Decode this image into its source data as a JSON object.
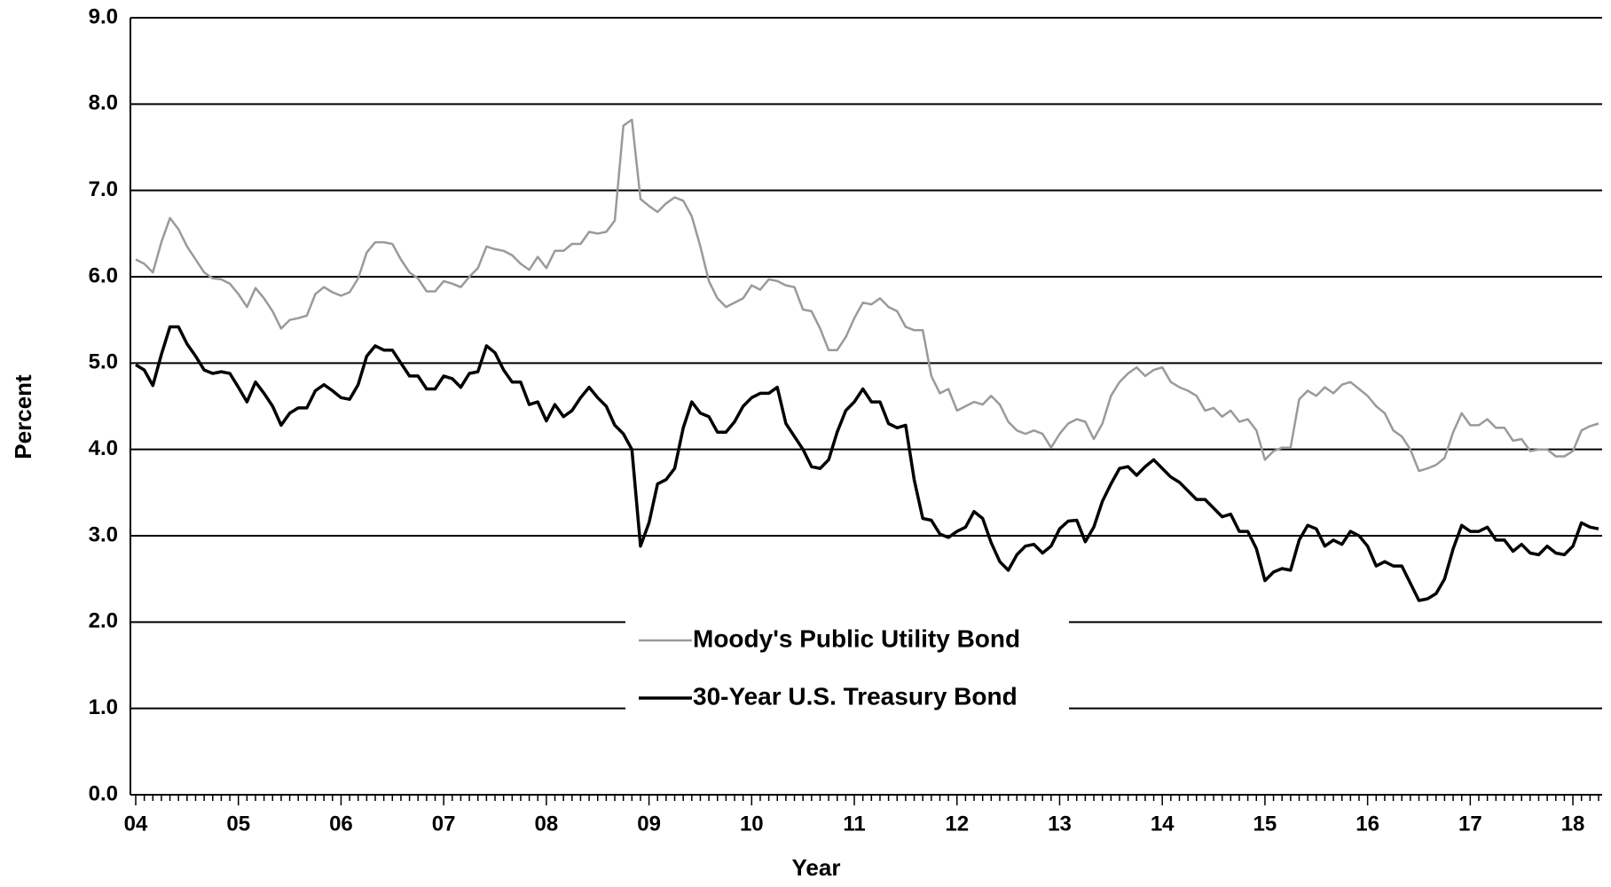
{
  "chart_data": {
    "type": "line",
    "y_label": "Percent",
    "x_label": "Year",
    "categories": [
      "04",
      null,
      null,
      null,
      null,
      null,
      null,
      null,
      null,
      null,
      null,
      null,
      "05",
      null,
      null,
      null,
      null,
      null,
      null,
      null,
      null,
      null,
      null,
      null,
      "06",
      null,
      null,
      null,
      null,
      null,
      null,
      null,
      null,
      null,
      null,
      null,
      "07",
      null,
      null,
      null,
      null,
      null,
      null,
      null,
      null,
      null,
      null,
      null,
      "08",
      null,
      null,
      null,
      null,
      null,
      null,
      null,
      null,
      null,
      null,
      null,
      "09",
      null,
      null,
      null,
      null,
      null,
      null,
      null,
      null,
      null,
      null,
      null,
      "10",
      null,
      null,
      null,
      null,
      null,
      null,
      null,
      null,
      null,
      null,
      null,
      "11",
      null,
      null,
      null,
      null,
      null,
      null,
      null,
      null,
      null,
      null,
      null,
      "12",
      null,
      null,
      null,
      null,
      null,
      null,
      null,
      null,
      null,
      null,
      null,
      "13",
      null,
      null,
      null,
      null,
      null,
      null,
      null,
      null,
      null,
      null,
      null,
      "14",
      null,
      null,
      null,
      null,
      null,
      null,
      null,
      null,
      null,
      null,
      null,
      "15",
      null,
      null,
      null,
      null,
      null,
      null,
      null,
      null,
      null,
      null,
      null,
      "16",
      null,
      null,
      null,
      null,
      null,
      null,
      null,
      null,
      null,
      null,
      null,
      "17",
      null,
      null,
      null,
      null,
      null,
      null,
      null,
      null,
      null,
      null,
      null,
      "18",
      null,
      null,
      null
    ],
    "series": [
      {
        "name": "Moody's Public Utility Bond",
        "color": "#9a9a9a",
        "values": [
          6.2,
          6.15,
          6.05,
          6.4,
          6.68,
          6.55,
          6.35,
          6.2,
          6.05,
          5.98,
          5.97,
          5.92,
          5.8,
          5.65,
          5.87,
          5.75,
          5.6,
          5.4,
          5.5,
          5.52,
          5.55,
          5.8,
          5.88,
          5.82,
          5.78,
          5.82,
          5.98,
          6.28,
          6.4,
          6.4,
          6.38,
          6.2,
          6.05,
          5.98,
          5.83,
          5.83,
          5.95,
          5.92,
          5.88,
          6.0,
          6.1,
          6.35,
          6.32,
          6.3,
          6.25,
          6.15,
          6.08,
          6.23,
          6.1,
          6.3,
          6.3,
          6.38,
          6.38,
          6.52,
          6.5,
          6.52,
          6.65,
          7.75,
          7.82,
          6.9,
          6.82,
          6.75,
          6.85,
          6.92,
          6.88,
          6.7,
          6.35,
          5.95,
          5.75,
          5.65,
          5.7,
          5.75,
          5.9,
          5.85,
          5.97,
          5.95,
          5.9,
          5.88,
          5.62,
          5.6,
          5.4,
          5.15,
          5.15,
          5.3,
          5.52,
          5.7,
          5.68,
          5.75,
          5.65,
          5.6,
          5.42,
          5.38,
          5.38,
          4.85,
          4.65,
          4.7,
          4.45,
          4.5,
          4.55,
          4.52,
          4.62,
          4.52,
          4.32,
          4.22,
          4.18,
          4.22,
          4.18,
          4.02,
          4.18,
          4.3,
          4.35,
          4.32,
          4.12,
          4.3,
          4.62,
          4.78,
          4.88,
          4.95,
          4.85,
          4.92,
          4.95,
          4.78,
          4.72,
          4.68,
          4.62,
          4.45,
          4.48,
          4.38,
          4.45,
          4.32,
          4.35,
          4.22,
          3.88,
          3.98,
          4.02,
          4.02,
          4.58,
          4.68,
          4.62,
          4.72,
          4.65,
          4.75,
          4.78,
          4.7,
          4.62,
          4.5,
          4.42,
          4.22,
          4.15,
          4.0,
          3.75,
          3.78,
          3.82,
          3.9,
          4.2,
          4.42,
          4.28,
          4.28,
          4.35,
          4.25,
          4.25,
          4.1,
          4.12,
          3.98,
          4.0,
          4.0,
          3.92,
          3.92,
          3.98,
          4.22,
          4.27,
          4.3
        ]
      },
      {
        "name": "30-Year U.S. Treasury Bond",
        "color": "#000000",
        "values": [
          4.98,
          4.92,
          4.74,
          5.1,
          5.42,
          5.42,
          5.22,
          5.08,
          4.92,
          4.88,
          4.9,
          4.88,
          4.72,
          4.55,
          4.78,
          4.65,
          4.5,
          4.28,
          4.42,
          4.48,
          4.48,
          4.68,
          4.75,
          4.68,
          4.6,
          4.58,
          4.75,
          5.08,
          5.2,
          5.15,
          5.15,
          5.0,
          4.85,
          4.85,
          4.7,
          4.7,
          4.85,
          4.82,
          4.72,
          4.88,
          4.9,
          5.2,
          5.12,
          4.92,
          4.78,
          4.78,
          4.52,
          4.55,
          4.33,
          4.52,
          4.38,
          4.45,
          4.6,
          4.72,
          4.6,
          4.5,
          4.28,
          4.18,
          4.0,
          2.88,
          3.15,
          3.6,
          3.65,
          3.78,
          4.25,
          4.55,
          4.42,
          4.38,
          4.2,
          4.2,
          4.32,
          4.5,
          4.6,
          4.65,
          4.65,
          4.72,
          4.3,
          4.15,
          4.0,
          3.8,
          3.78,
          3.88,
          4.2,
          4.45,
          4.55,
          4.7,
          4.55,
          4.55,
          4.3,
          4.25,
          4.28,
          3.65,
          3.2,
          3.18,
          3.02,
          2.98,
          3.05,
          3.1,
          3.28,
          3.2,
          2.92,
          2.7,
          2.6,
          2.78,
          2.88,
          2.9,
          2.8,
          2.88,
          3.08,
          3.17,
          3.18,
          2.93,
          3.1,
          3.4,
          3.6,
          3.78,
          3.8,
          3.7,
          3.8,
          3.88,
          3.78,
          3.68,
          3.62,
          3.52,
          3.42,
          3.42,
          3.32,
          3.22,
          3.25,
          3.05,
          3.05,
          2.85,
          2.48,
          2.58,
          2.62,
          2.6,
          2.95,
          3.12,
          3.08,
          2.88,
          2.95,
          2.9,
          3.05,
          3.0,
          2.88,
          2.65,
          2.7,
          2.65,
          2.65,
          2.45,
          2.25,
          2.27,
          2.33,
          2.5,
          2.85,
          3.12,
          3.05,
          3.05,
          3.1,
          2.95,
          2.95,
          2.82,
          2.9,
          2.8,
          2.78,
          2.88,
          2.8,
          2.78,
          2.88,
          3.15,
          3.1,
          3.08
        ]
      }
    ],
    "ylim": [
      0,
      9
    ],
    "yticks": [
      {
        "value": 0,
        "label": "0.0"
      },
      {
        "value": 1,
        "label": "1.0"
      },
      {
        "value": 2,
        "label": "2.0"
      },
      {
        "value": 3,
        "label": "3.0"
      },
      {
        "value": 4,
        "label": "4.0"
      },
      {
        "value": 5,
        "label": "5.0"
      },
      {
        "value": 6,
        "label": "6.0"
      },
      {
        "value": 7,
        "label": "7.0"
      },
      {
        "value": 8,
        "label": "8.0"
      },
      {
        "value": 9,
        "label": "9.0"
      }
    ],
    "grid": true,
    "legend": "center"
  }
}
